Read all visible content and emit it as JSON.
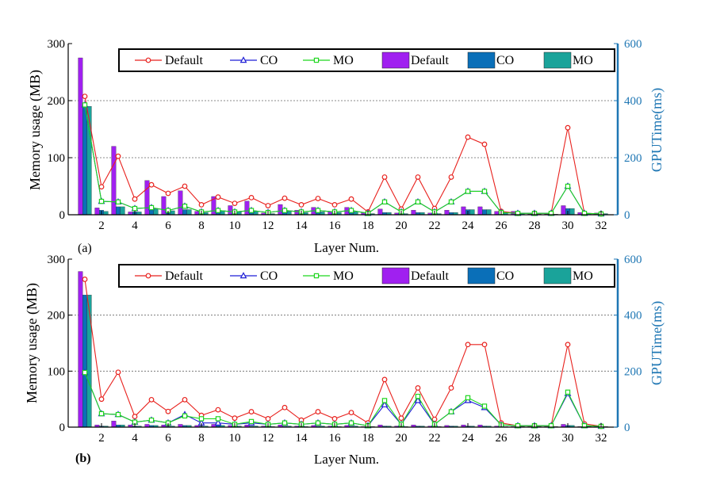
{
  "figure": {
    "colors": {
      "default_line": "#e8211d",
      "co_line": "#1f1fd6",
      "mo_line": "#1fd61f",
      "default_bar": "#a020f0",
      "co_bar": "#0a6fb8",
      "mo_bar": "#1aa39a",
      "right_axis": "#1f77b4"
    }
  },
  "chart_data": [
    {
      "type": "bar",
      "panel_label": "(a)",
      "xlabel": "Layer Num.",
      "ylabel": "Memory usage (MB)",
      "ylabel_right": "GPUTime(ms)",
      "x_ticks": [
        2,
        4,
        6,
        8,
        10,
        12,
        14,
        16,
        18,
        20,
        22,
        24,
        26,
        28,
        30,
        32
      ],
      "xlim": [
        0,
        33
      ],
      "ylim": [
        0,
        300
      ],
      "y_ticks": [
        0,
        100,
        200,
        300
      ],
      "ylim_right": [
        0,
        600
      ],
      "y_ticks_right": [
        0,
        200,
        400,
        600
      ],
      "grid": "dashed horizontal at 100 and 200",
      "legend": [
        "Default",
        "CO",
        "MO",
        "Default",
        "CO",
        "MO"
      ],
      "legend_position": "top",
      "categories": [
        1,
        2,
        3,
        4,
        5,
        6,
        7,
        8,
        9,
        10,
        11,
        12,
        13,
        14,
        15,
        16,
        17,
        18,
        19,
        20,
        21,
        22,
        23,
        24,
        25,
        26,
        27,
        28,
        29,
        30,
        31,
        32
      ],
      "bar_series": [
        {
          "name": "Default",
          "values": [
            275,
            12,
            120,
            5,
            60,
            32,
            42,
            6,
            32,
            16,
            24,
            3,
            18,
            8,
            13,
            6,
            13,
            3,
            10,
            3,
            8,
            3,
            8,
            14,
            14,
            6,
            6,
            1,
            1,
            16,
            4,
            3
          ]
        },
        {
          "name": "CO",
          "values": [
            190,
            8,
            14,
            5,
            10,
            7,
            9,
            4,
            7,
            5,
            6,
            2,
            6,
            4,
            5,
            4,
            5,
            2,
            4,
            2,
            4,
            2,
            4,
            9,
            9,
            3,
            3,
            1,
            1,
            11,
            2,
            2
          ]
        },
        {
          "name": "MO",
          "values": [
            190,
            6,
            14,
            5,
            10,
            7,
            9,
            4,
            7,
            5,
            6,
            2,
            6,
            4,
            5,
            4,
            5,
            2,
            4,
            2,
            4,
            2,
            4,
            9,
            9,
            3,
            3,
            1,
            1,
            11,
            2,
            2
          ]
        }
      ],
      "line_series": [
        {
          "name": "Default",
          "values": [
            415,
            98,
            205,
            55,
            105,
            75,
            100,
            35,
            62,
            40,
            60,
            32,
            58,
            35,
            57,
            35,
            55,
            10,
            132,
            20,
            132,
            22,
            132,
            272,
            247,
            12,
            5,
            5,
            5,
            305,
            5,
            3
          ]
        },
        {
          "name": "CO",
          "values": [
            385,
            47,
            45,
            22,
            25,
            15,
            30,
            10,
            15,
            10,
            15,
            8,
            15,
            10,
            15,
            10,
            15,
            5,
            45,
            10,
            45,
            10,
            45,
            82,
            82,
            8,
            5,
            5,
            5,
            100,
            5,
            3
          ]
        },
        {
          "name": "MO",
          "values": [
            385,
            47,
            45,
            22,
            25,
            15,
            30,
            10,
            15,
            10,
            15,
            8,
            15,
            10,
            15,
            10,
            15,
            5,
            45,
            10,
            45,
            10,
            45,
            82,
            82,
            8,
            5,
            5,
            5,
            100,
            5,
            3
          ]
        }
      ]
    },
    {
      "type": "bar",
      "panel_label": "(b)",
      "xlabel": "Layer Num.",
      "ylabel": "Memory usage (MB)",
      "ylabel_right": "GPUTime(ms)",
      "x_ticks": [
        2,
        4,
        6,
        8,
        10,
        12,
        14,
        16,
        18,
        20,
        22,
        24,
        26,
        28,
        30,
        32
      ],
      "xlim": [
        0,
        33
      ],
      "ylim": [
        0,
        300
      ],
      "y_ticks": [
        0,
        100,
        200,
        300
      ],
      "ylim_right": [
        0,
        600
      ],
      "y_ticks_right": [
        0,
        200,
        400,
        600
      ],
      "grid": "dashed horizontal at 100 and 200",
      "legend": [
        "Default",
        "CO",
        "MO",
        "Default",
        "CO",
        "MO"
      ],
      "legend_position": "top",
      "categories": [
        1,
        2,
        3,
        4,
        5,
        6,
        7,
        8,
        9,
        10,
        11,
        12,
        13,
        14,
        15,
        16,
        17,
        18,
        19,
        20,
        21,
        22,
        23,
        24,
        25,
        26,
        27,
        28,
        29,
        30,
        31,
        32
      ],
      "bar_series": [
        {
          "name": "Default",
          "values": [
            278,
            4,
            11,
            4,
            5,
            4,
            5,
            3,
            5,
            3,
            4,
            2,
            4,
            2,
            3,
            2,
            3,
            1,
            4,
            2,
            4,
            2,
            3,
            4,
            4,
            2,
            1,
            1,
            1,
            5,
            1,
            1
          ]
        },
        {
          "name": "CO",
          "values": [
            236,
            2,
            4,
            2,
            3,
            2,
            3,
            2,
            3,
            2,
            2,
            1,
            2,
            1,
            2,
            1,
            2,
            1,
            2,
            1,
            2,
            1,
            2,
            2,
            2,
            1,
            1,
            1,
            1,
            3,
            1,
            1
          ]
        },
        {
          "name": "MO",
          "values": [
            236,
            2,
            4,
            2,
            3,
            2,
            3,
            2,
            3,
            2,
            2,
            1,
            2,
            1,
            2,
            1,
            2,
            1,
            2,
            1,
            2,
            1,
            2,
            2,
            2,
            1,
            1,
            1,
            1,
            3,
            1,
            1
          ]
        }
      ],
      "line_series": [
        {
          "name": "Default",
          "values": [
            528,
            100,
            196,
            38,
            98,
            56,
            98,
            42,
            62,
            32,
            55,
            30,
            70,
            25,
            55,
            30,
            52,
            15,
            170,
            32,
            140,
            28,
            140,
            295,
            295,
            15,
            5,
            5,
            5,
            295,
            12,
            3
          ]
        },
        {
          "name": "CO",
          "values": [
            195,
            48,
            45,
            18,
            25,
            15,
            45,
            15,
            15,
            10,
            15,
            10,
            15,
            10,
            15,
            10,
            15,
            5,
            80,
            10,
            95,
            10,
            55,
            95,
            70,
            8,
            5,
            5,
            5,
            120,
            5,
            3
          ]
        },
        {
          "name": "MO",
          "values": [
            195,
            48,
            45,
            18,
            25,
            15,
            40,
            30,
            30,
            10,
            20,
            10,
            15,
            10,
            15,
            10,
            15,
            5,
            95,
            10,
            110,
            10,
            55,
            105,
            75,
            8,
            5,
            5,
            5,
            125,
            5,
            3
          ]
        }
      ]
    }
  ]
}
